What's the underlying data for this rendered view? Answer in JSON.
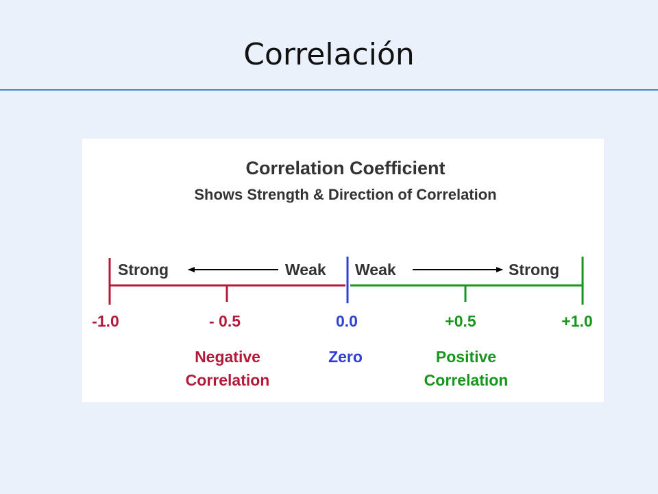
{
  "slide": {
    "title": "Correlación"
  },
  "figure": {
    "heading": "Correlation Coefficient",
    "subheading": "Shows Strength & Direction of Correlation",
    "negative_side": {
      "strong_label": "Strong",
      "weak_label": "Weak",
      "color": "#b5193a"
    },
    "positive_side": {
      "weak_label": "Weak",
      "strong_label": "Strong",
      "color": "#16961b"
    },
    "zero_color": "#2d3fd6",
    "ticks": [
      "-1.0",
      "- 0.5",
      "0.0",
      "+0.5",
      "+1.0"
    ],
    "categories": {
      "negative": [
        "Negative",
        "Correlation"
      ],
      "zero": "Zero",
      "positive": [
        "Positive",
        "Correlation"
      ]
    }
  }
}
